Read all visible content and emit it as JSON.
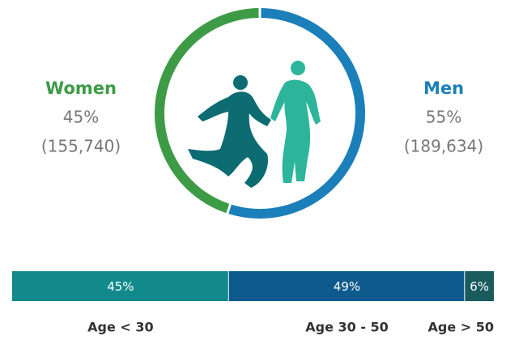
{
  "chart_data": [
    {
      "type": "pie",
      "categories": [
        "Women",
        "Men"
      ],
      "values": [
        45,
        55
      ],
      "value_labels": [
        "45%",
        "55%"
      ],
      "counts": [
        155740,
        189634
      ],
      "count_labels": [
        "(155,740)",
        "(189,634)"
      ],
      "colors": [
        "#3d9b45",
        "#1b7fba"
      ]
    },
    {
      "type": "stacked-bar",
      "categories": [
        "Age < 30",
        "Age 30 - 50",
        "Age > 50"
      ],
      "values": [
        45,
        49,
        6
      ],
      "value_labels": [
        "45%",
        "49%",
        "6%"
      ],
      "colors": [
        "#12898a",
        "#0e5a8c",
        "#1a5c5e"
      ]
    }
  ]
}
